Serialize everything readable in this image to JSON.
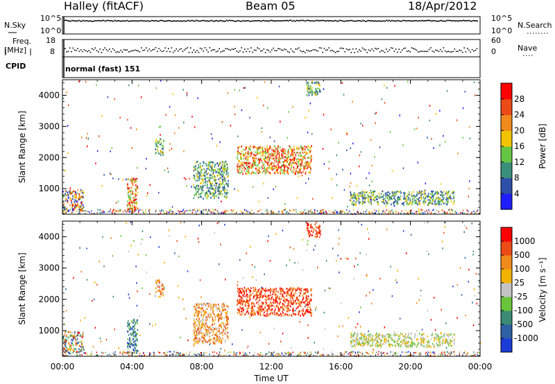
{
  "header": {
    "station": "Halley (fitACF)",
    "beam": "Beam 05",
    "date": "18/Apr/2012"
  },
  "panels": {
    "nsky": {
      "label": "N.Sky",
      "left_ticks": [
        "10^5",
        "10^0"
      ],
      "right_ticks": [
        "10^5",
        "10^0"
      ],
      "right_label": "N.Search"
    },
    "freq": {
      "label": "Freq.",
      "unit": "[MHz]",
      "left_ticks": [
        "18",
        "8"
      ],
      "right_ticks": [
        "60",
        "0"
      ],
      "right_label": "Nave"
    },
    "cpid": {
      "label": "CPID",
      "value": "normal (fast) 151"
    }
  },
  "chart_data": [
    {
      "type": "heatmap",
      "quantity": "Power",
      "ylabel": "Slant Range [km]",
      "xlabel": "Time UT",
      "ylim": [
        180,
        4500
      ],
      "yticks": [
        "1000",
        "2000",
        "3000",
        "4000"
      ],
      "xticks": [
        "00:00",
        "04:00",
        "08:00",
        "12:00",
        "16:00",
        "20:00",
        "00:00"
      ],
      "colorbar": {
        "label": "Power [dB]",
        "ticks": [
          "4",
          "8",
          "12",
          "16",
          "20",
          "24",
          "28"
        ],
        "colors": [
          "#1e1eff",
          "#2d4fa8",
          "#3a8f7a",
          "#66c644",
          "#f2c400",
          "#f08a1c",
          "#ec4a16",
          "#ff0000"
        ]
      },
      "echo_regions": [
        {
          "t_start": 0.0,
          "t_end": 1.2,
          "r_min": 300,
          "r_max": 1000,
          "value": "mixed"
        },
        {
          "t_start": 3.7,
          "t_end": 4.3,
          "r_min": 300,
          "r_max": 1400,
          "value": "high"
        },
        {
          "t_start": 5.3,
          "t_end": 5.8,
          "r_min": 2100,
          "r_max": 2650,
          "value": "medium"
        },
        {
          "t_start": 7.5,
          "t_end": 9.5,
          "r_min": 700,
          "r_max": 1900,
          "value": "medium"
        },
        {
          "t_start": 10.0,
          "t_end": 14.3,
          "r_min": 1500,
          "r_max": 2400,
          "value": "high"
        },
        {
          "t_start": 14.0,
          "t_end": 14.8,
          "r_min": 4000,
          "r_max": 4500,
          "value": "medium"
        },
        {
          "t_start": 16.5,
          "t_end": 22.5,
          "r_min": 500,
          "r_max": 950,
          "value": "medium"
        }
      ]
    },
    {
      "type": "heatmap",
      "quantity": "Velocity",
      "ylabel": "Slant Range [km]",
      "xlabel": "Time UT",
      "ylim": [
        180,
        4500
      ],
      "yticks": [
        "1000",
        "2000",
        "3000",
        "4000"
      ],
      "xticks": [
        "00:00",
        "04:00",
        "08:00",
        "12:00",
        "16:00",
        "20:00",
        "00:00"
      ],
      "colorbar": {
        "label": "Velocity [m s⁻¹]",
        "ticks": [
          "1000",
          "500",
          "100",
          "25",
          "-25",
          "-100",
          "-500",
          "-1000"
        ],
        "colors": [
          "#1c3cd8",
          "#2d61a4",
          "#3a8a74",
          "#6ac43a",
          "#c4c4c4",
          "#f2b200",
          "#f08a1c",
          "#ec4a16",
          "#ff0000"
        ]
      },
      "echo_regions": [
        {
          "t_start": 0.0,
          "t_end": 1.2,
          "r_min": 300,
          "r_max": 1000,
          "value": "mixed"
        },
        {
          "t_start": 3.7,
          "t_end": 4.3,
          "r_min": 300,
          "r_max": 1400,
          "value": "positive"
        },
        {
          "t_start": 5.3,
          "t_end": 5.8,
          "r_min": 2100,
          "r_max": 2650,
          "value": "negative"
        },
        {
          "t_start": 7.5,
          "t_end": 9.5,
          "r_min": 600,
          "r_max": 1900,
          "value": "negative"
        },
        {
          "t_start": 10.0,
          "t_end": 14.3,
          "r_min": 1500,
          "r_max": 2400,
          "value": "strongly negative"
        },
        {
          "t_start": 14.0,
          "t_end": 14.8,
          "r_min": 4000,
          "r_max": 4500,
          "value": "strongly negative"
        },
        {
          "t_start": 16.5,
          "t_end": 22.5,
          "r_min": 500,
          "r_max": 950,
          "value": "near zero"
        }
      ]
    }
  ]
}
